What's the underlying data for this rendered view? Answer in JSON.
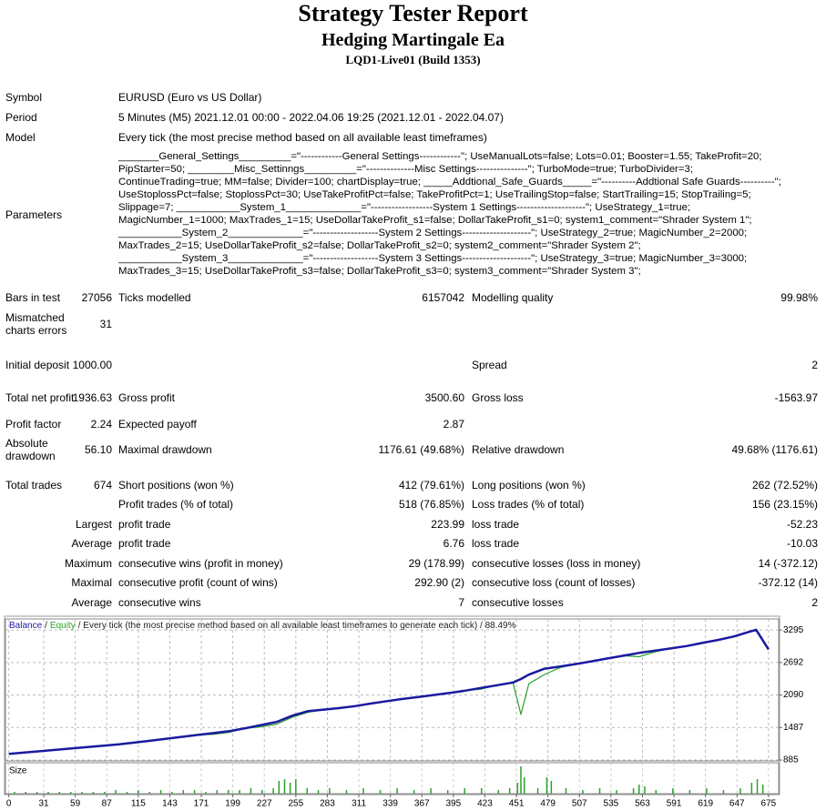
{
  "header": {
    "title": "Strategy Tester Report",
    "subtitle": "Hedging Martingale Ea",
    "build": "LQD1-Live01 (Build 1353)"
  },
  "info": [
    {
      "label": "Symbol",
      "value": "EURUSD (Euro vs US Dollar)"
    },
    {
      "label": "Period",
      "value": "5 Minutes (M5) 2021.12.01 00:00 - 2022.04.06 19:25 (2021.12.01 - 2022.04.07)"
    },
    {
      "label": "Model",
      "value": "Every tick (the most precise method based on all available least timeframes)"
    }
  ],
  "parameters": {
    "label": "Parameters",
    "lines": [
      "_______General_Settings_________=\"------------General Settings------------\"; UseManualLots=false; Lots=0.01; Booster=1.55; TakeProfit=20;",
      "PipStarter=50; ________Misc_Settinngs_________=\"--------------Misc Settings---------------\"; TurboMode=true; TurboDivider=3;",
      "ContinueTrading=true; MM=false; Divider=100; chartDisplay=true; _____Addtional_Safe_Guards_____=\"----------Addtional Safe Guards----------\";",
      "UseStoplossPct=false; StoplossPct=30; UseTakeProfitPct=false; TakeProfitPct=1; UseTrailingStop=false; StartTrailing=15; StopTrailing=5;",
      "Slippage=7; ___________System_1_____________=\"------------------System 1 Settings--------------------\"; UseStrategy_1=true;",
      "MagicNumber_1=1000; MaxTrades_1=15; UseDollarTakeProfit_s1=false; DollarTakeProfit_s1=0; system1_comment=\"Shrader System 1\";",
      "___________System_2_____________=\"-------------------System 2 Settings--------------------\"; UseStrategy_2=true; MagicNumber_2=2000;",
      "MaxTrades_2=15; UseDollarTakeProfit_s2=false; DollarTakeProfit_s2=0; system2_comment=\"Shrader System 2\";",
      "___________System_3_____________=\"-------------------System 3 Settings--------------------\"; UseStrategy_3=true; MagicNumber_3=3000;",
      "MaxTrades_3=15; UseDollarTakeProfit_s3=false; DollarTakeProfit_s3=0; system3_comment=\"Shrader System 3\";"
    ]
  },
  "stats": [
    {
      "left": {
        "label": "Bars in test",
        "value": "27056"
      },
      "middle": {
        "label": "Ticks modelled",
        "value": "6157042"
      },
      "right": {
        "label": "Modelling quality",
        "value": "99.98%"
      }
    },
    {
      "left": {
        "label": "Mismatched charts errors",
        "value": "31"
      }
    },
    {
      "left": {
        "label": "Initial deposit",
        "value": "1000.00"
      },
      "right": {
        "label": "Spread",
        "value": "2"
      }
    },
    {
      "left": {
        "label": "Total net profit",
        "value": "1936.63"
      },
      "middle": {
        "label": "Gross profit",
        "value": "3500.60"
      },
      "right": {
        "label": "Gross loss",
        "value": "-1563.97"
      }
    },
    {
      "left": {
        "label": "Profit factor",
        "value": "2.24"
      },
      "middle": {
        "label": "Expected payoff",
        "value": "2.87"
      }
    },
    {
      "left": {
        "label": "Absolute drawdown",
        "value": "56.10"
      },
      "middle": {
        "label": "Maximal drawdown",
        "value": "1176.61 (49.68%)"
      },
      "right": {
        "label": "Relative drawdown",
        "value": "49.68% (1176.61)"
      }
    },
    {
      "left": {
        "label": "Total trades",
        "value": "674"
      },
      "middle": {
        "label": "Short positions (won %)",
        "value": "412 (79.61%)"
      },
      "right": {
        "label": "Long positions (won %)",
        "value": "262 (72.52%)"
      }
    },
    {
      "middle": {
        "label": "Profit trades (% of total)",
        "value": "518 (76.85%)"
      },
      "right": {
        "label": "Loss trades (% of total)",
        "value": "156 (23.15%)"
      }
    },
    {
      "prefix": "Largest",
      "middle": {
        "label": "profit trade",
        "value": "223.99"
      },
      "right": {
        "label": "loss trade",
        "value": "-52.23"
      }
    },
    {
      "prefix": "Average",
      "middle": {
        "label": "profit trade",
        "value": "6.76"
      },
      "right": {
        "label": "loss trade",
        "value": "-10.03"
      }
    },
    {
      "prefix": "Maximum",
      "middle": {
        "label": "consecutive wins (profit in money)",
        "value": "29 (178.99)"
      },
      "right": {
        "label": "consecutive losses (loss in money)",
        "value": "14 (-372.12)"
      }
    },
    {
      "prefix": "Maximal",
      "middle": {
        "label": "consecutive profit (count of wins)",
        "value": "292.90 (2)"
      },
      "right": {
        "label": "consecutive loss (count of losses)",
        "value": "-372.12 (14)"
      }
    },
    {
      "prefix": "Average",
      "middle": {
        "label": "consecutive wins",
        "value": "7"
      },
      "right": {
        "label": "consecutive losses",
        "value": "2"
      }
    }
  ],
  "chart_data": {
    "type": "line",
    "legend_separator": "/",
    "legend_note": "/ Every tick (the most precise method based on all available least timeframes to generate each tick) / 88.49%",
    "x": [
      0,
      14,
      28,
      42,
      56,
      70,
      84,
      98,
      112,
      126,
      140,
      154,
      168,
      182,
      196,
      210,
      224,
      238,
      252,
      266,
      280,
      294,
      308,
      322,
      336,
      350,
      364,
      378,
      392,
      406,
      420,
      434,
      448,
      455,
      462,
      476,
      490,
      504,
      518,
      532,
      546,
      560,
      574,
      588,
      602,
      616,
      630,
      644,
      658,
      664,
      675
    ],
    "series": [
      {
        "name": "Balance",
        "color": "#1a1aa0",
        "values": [
          1000,
          1025,
          1050,
          1076,
          1101,
          1126,
          1151,
          1176,
          1210,
          1245,
          1280,
          1315,
          1350,
          1385,
          1420,
          1473,
          1532,
          1592,
          1708,
          1792,
          1820,
          1848,
          1886,
          1932,
          1977,
          2017,
          2054,
          2091,
          2129,
          2172,
          2222,
          2272,
          2323,
          2387,
          2468,
          2578,
          2620,
          2665,
          2716,
          2767,
          2819,
          2870,
          2912,
          2954,
          2998,
          3054,
          3110,
          3175,
          3262,
          3300,
          2937
        ]
      },
      {
        "name": "Equity",
        "color": "#2ca02c",
        "values": [
          1000,
          1025,
          1050,
          1076,
          1101,
          1126,
          1151,
          1176,
          1210,
          1245,
          1280,
          1315,
          1350,
          1360,
          1400,
          1473,
          1500,
          1550,
          1680,
          1770,
          1820,
          1848,
          1886,
          1932,
          1977,
          2017,
          2054,
          2091,
          2129,
          2172,
          2200,
          2272,
          2323,
          1730,
          2300,
          2470,
          2600,
          2665,
          2716,
          2767,
          2819,
          2800,
          2890,
          2954,
          2998,
          3054,
          3100,
          3175,
          3262,
          3280,
          2937
        ]
      }
    ],
    "xlim": [
      -3,
      684
    ],
    "ylim": [
      868,
      3500
    ],
    "xticks": [
      0,
      31,
      59,
      87,
      115,
      143,
      171,
      199,
      227,
      255,
      283,
      311,
      339,
      367,
      395,
      423,
      451,
      479,
      507,
      535,
      563,
      591,
      619,
      647,
      675
    ],
    "yticks": [
      885,
      1487,
      2090,
      2692,
      3295
    ],
    "grid": true,
    "size_panel": {
      "label": "Size",
      "color": "#2ca02c",
      "ylim": [
        0,
        0.16
      ],
      "x": [
        5,
        15,
        25,
        35,
        45,
        55,
        65,
        75,
        85,
        95,
        105,
        115,
        125,
        135,
        145,
        155,
        165,
        175,
        185,
        195,
        205,
        215,
        225,
        235,
        240,
        245,
        250,
        255,
        265,
        275,
        285,
        300,
        315,
        330,
        345,
        360,
        375,
        390,
        405,
        420,
        435,
        445,
        452,
        455,
        458,
        470,
        478,
        482,
        495,
        510,
        525,
        540,
        555,
        560,
        565,
        575,
        590,
        605,
        620,
        635,
        650,
        660,
        665,
        670
      ],
      "values": [
        0.01,
        0.01,
        0.01,
        0.01,
        0.01,
        0.01,
        0.01,
        0.01,
        0.01,
        0.02,
        0.01,
        0.02,
        0.01,
        0.02,
        0.01,
        0.02,
        0.02,
        0.01,
        0.02,
        0.02,
        0.02,
        0.03,
        0.02,
        0.03,
        0.07,
        0.08,
        0.06,
        0.08,
        0.03,
        0.02,
        0.03,
        0.02,
        0.03,
        0.02,
        0.03,
        0.02,
        0.03,
        0.02,
        0.03,
        0.03,
        0.02,
        0.03,
        0.06,
        0.15,
        0.09,
        0.03,
        0.09,
        0.07,
        0.03,
        0.02,
        0.03,
        0.02,
        0.03,
        0.05,
        0.04,
        0.02,
        0.03,
        0.02,
        0.03,
        0.02,
        0.03,
        0.06,
        0.08,
        0.05
      ]
    }
  }
}
